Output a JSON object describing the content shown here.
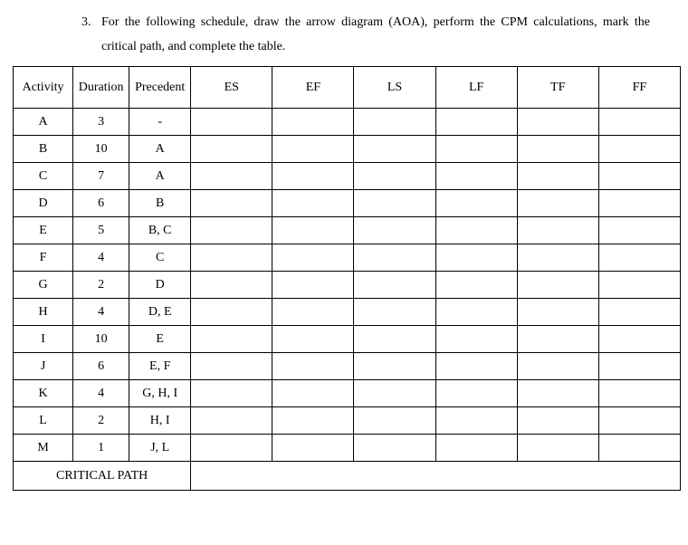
{
  "question": {
    "number": "3.",
    "text": "For the following schedule, draw the arrow diagram (AOA), perform the CPM calculations, mark the critical path, and complete the table."
  },
  "table": {
    "headers": [
      "Activity",
      "Duration",
      "Precedent",
      "ES",
      "EF",
      "LS",
      "LF",
      "TF",
      "FF"
    ],
    "rows": [
      {
        "activity": "A",
        "duration": "3",
        "precedent": "-",
        "es": "",
        "ef": "",
        "ls": "",
        "lf": "",
        "tf": "",
        "ff": ""
      },
      {
        "activity": "B",
        "duration": "10",
        "precedent": "A",
        "es": "",
        "ef": "",
        "ls": "",
        "lf": "",
        "tf": "",
        "ff": ""
      },
      {
        "activity": "C",
        "duration": "7",
        "precedent": "A",
        "es": "",
        "ef": "",
        "ls": "",
        "lf": "",
        "tf": "",
        "ff": ""
      },
      {
        "activity": "D",
        "duration": "6",
        "precedent": "B",
        "es": "",
        "ef": "",
        "ls": "",
        "lf": "",
        "tf": "",
        "ff": ""
      },
      {
        "activity": "E",
        "duration": "5",
        "precedent": "B, C",
        "es": "",
        "ef": "",
        "ls": "",
        "lf": "",
        "tf": "",
        "ff": ""
      },
      {
        "activity": "F",
        "duration": "4",
        "precedent": "C",
        "es": "",
        "ef": "",
        "ls": "",
        "lf": "",
        "tf": "",
        "ff": ""
      },
      {
        "activity": "G",
        "duration": "2",
        "precedent": "D",
        "es": "",
        "ef": "",
        "ls": "",
        "lf": "",
        "tf": "",
        "ff": ""
      },
      {
        "activity": "H",
        "duration": "4",
        "precedent": "D, E",
        "es": "",
        "ef": "",
        "ls": "",
        "lf": "",
        "tf": "",
        "ff": ""
      },
      {
        "activity": "I",
        "duration": "10",
        "precedent": "E",
        "es": "",
        "ef": "",
        "ls": "",
        "lf": "",
        "tf": "",
        "ff": ""
      },
      {
        "activity": "J",
        "duration": "6",
        "precedent": "E, F",
        "es": "",
        "ef": "",
        "ls": "",
        "lf": "",
        "tf": "",
        "ff": ""
      },
      {
        "activity": "K",
        "duration": "4",
        "precedent": "G, H, I",
        "es": "",
        "ef": "",
        "ls": "",
        "lf": "",
        "tf": "",
        "ff": ""
      },
      {
        "activity": "L",
        "duration": "2",
        "precedent": "H, I",
        "es": "",
        "ef": "",
        "ls": "",
        "lf": "",
        "tf": "",
        "ff": ""
      },
      {
        "activity": "M",
        "duration": "1",
        "precedent": "J, L",
        "es": "",
        "ef": "",
        "ls": "",
        "lf": "",
        "tf": "",
        "ff": ""
      }
    ],
    "footer": {
      "label": "CRITICAL PATH",
      "value": ""
    }
  }
}
